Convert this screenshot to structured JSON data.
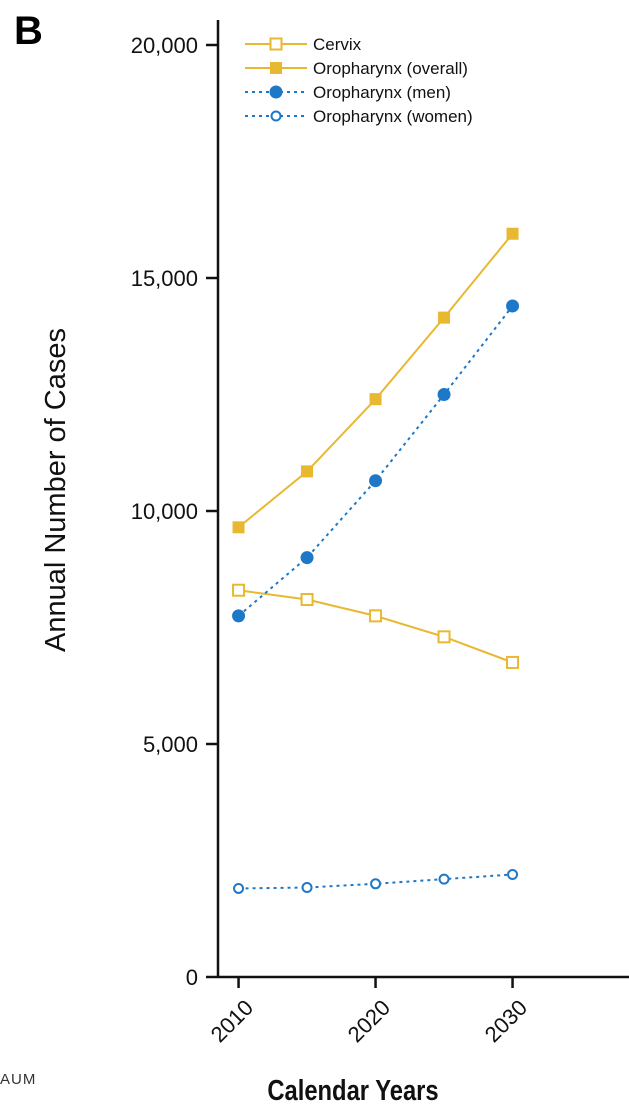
{
  "panel_label": "B",
  "edge_fragment": "AUM",
  "colors": {
    "cervix": "#E8B830",
    "oropharynx_overall": "#E8B830",
    "oropharynx_men": "#1E78C8",
    "oropharynx_women": "#1E78C8",
    "axis": "#111111"
  },
  "chart_data": {
    "type": "line",
    "title": "",
    "xlabel": "Calendar Years",
    "ylabel": "Annual Number of Cases",
    "x": [
      2010,
      2015,
      2020,
      2025,
      2030
    ],
    "xticks": [
      2010,
      2020,
      2030
    ],
    "xtick_labels": [
      "2010",
      "2020",
      "2030"
    ],
    "ylim": [
      0,
      20000
    ],
    "yticks": [
      0,
      5000,
      10000,
      15000,
      20000
    ],
    "ytick_labels": [
      "0",
      "5,000",
      "10,000",
      "15,000",
      "20,000"
    ],
    "grid": false,
    "legend_position": "top-left",
    "series": [
      {
        "name": "Cervix",
        "color": "#E8B830",
        "dashed": false,
        "marker": "square-open",
        "values": [
          8300,
          8100,
          7750,
          7300,
          6750
        ]
      },
      {
        "name": "Oropharynx (overall)",
        "color": "#E8B830",
        "dashed": false,
        "marker": "square-filled",
        "values": [
          9650,
          10850,
          12400,
          14150,
          15950
        ]
      },
      {
        "name": "Oropharynx (men)",
        "color": "#1E78C8",
        "dashed": true,
        "marker": "circle-filled",
        "values": [
          7750,
          9000,
          10650,
          12500,
          14400
        ]
      },
      {
        "name": "Oropharynx (women)",
        "color": "#1E78C8",
        "dashed": true,
        "marker": "circle-open",
        "values": [
          1900,
          1920,
          2000,
          2100,
          2200
        ]
      }
    ]
  }
}
